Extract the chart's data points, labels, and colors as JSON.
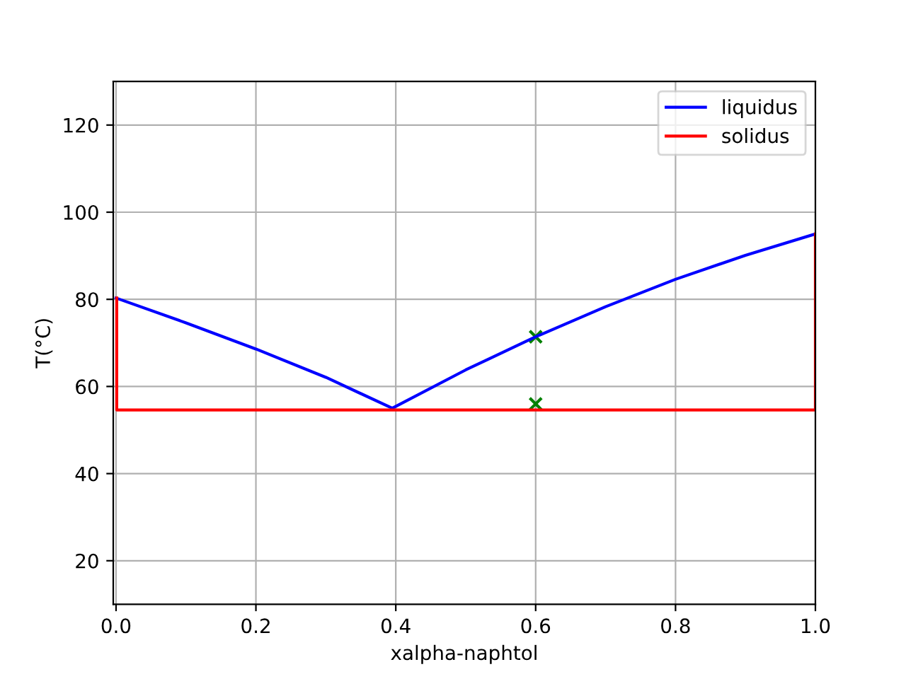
{
  "chart_data": {
    "type": "line",
    "xlabel": "xalpha-naphtol",
    "ylabel": "T(°C)",
    "xlim": [
      -0.004,
      1.0
    ],
    "ylim": [
      10,
      130
    ],
    "xticks": [
      {
        "value": 0,
        "label": "0.0"
      },
      0.2,
      0.4,
      0.6,
      0.8,
      {
        "value": 1,
        "label": "1.0"
      }
    ],
    "yticks": [
      20,
      40,
      60,
      80,
      100,
      120
    ],
    "grid": true,
    "legend": "top right",
    "marker": "none",
    "series": [
      {
        "name": "liquidus",
        "color": "#0000ff",
        "x": [
          0.0,
          0.1,
          0.2,
          0.3,
          0.395,
          0.5,
          0.6,
          0.7,
          0.8,
          0.9,
          1.0
        ],
        "values": [
          80.3,
          74.6,
          68.6,
          62.1,
          55.0,
          63.8,
          71.4,
          78.3,
          84.6,
          90.1,
          95.0
        ]
      },
      {
        "name": "solidus",
        "color": "#ff0000",
        "x": [
          0.001,
          0.001,
          1.0,
          1.0
        ],
        "values": [
          80.3,
          54.6,
          54.6,
          95.0
        ]
      },
      {
        "type": "scatter",
        "color": "#008000",
        "marker": "cross",
        "x": [
          0.6,
          0.6
        ],
        "values": [
          71.4,
          56.0
        ]
      }
    ]
  }
}
